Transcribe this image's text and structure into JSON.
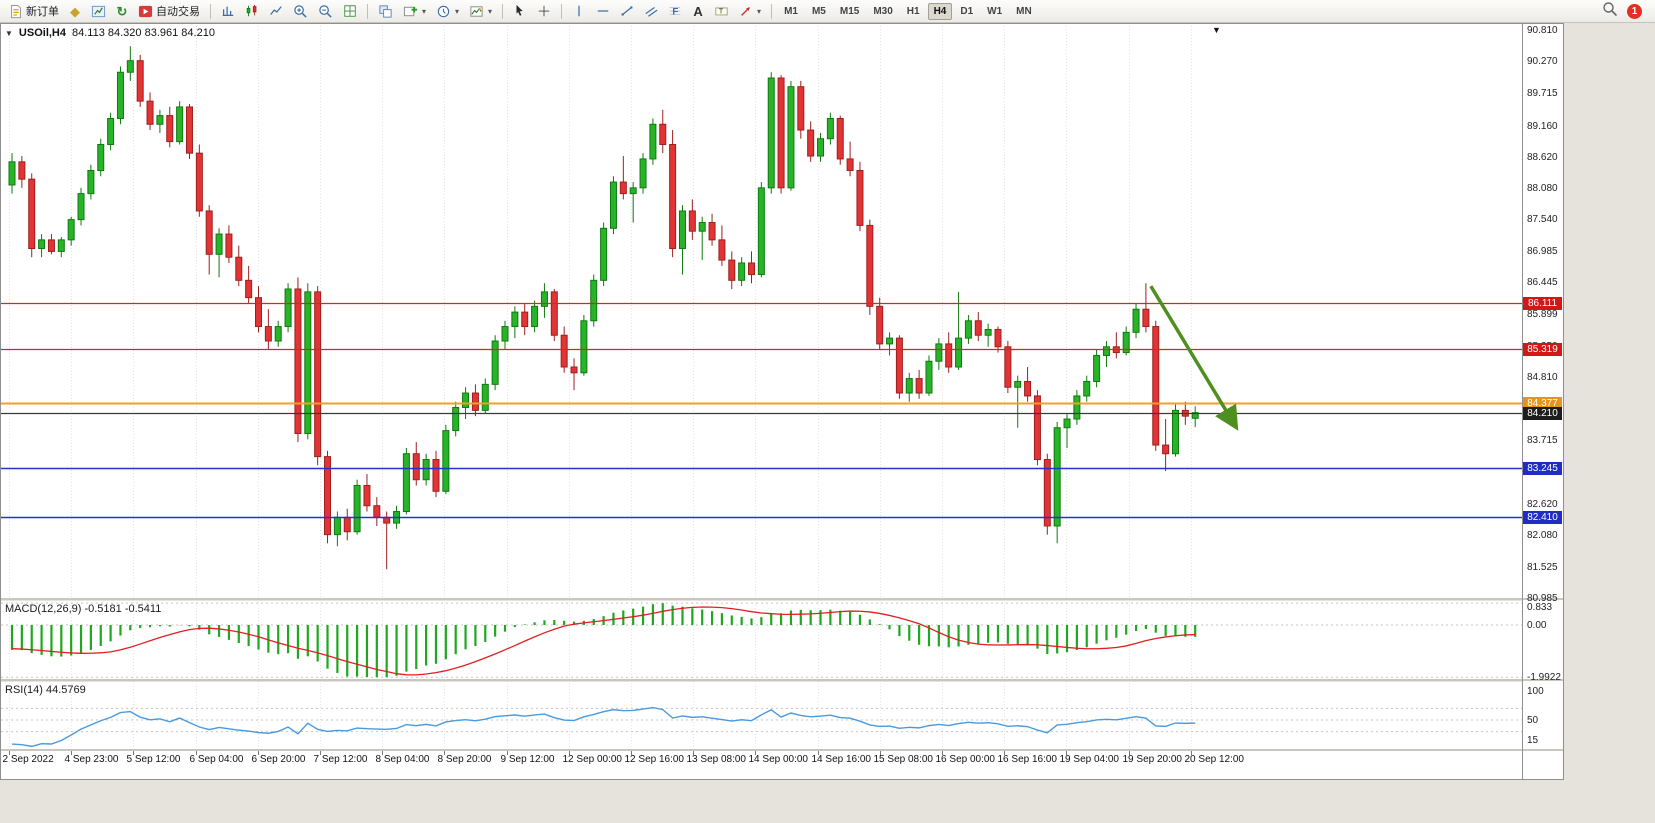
{
  "toolbar": {
    "new_order": "新订单",
    "autotrading": "自动交易",
    "timeframes": [
      "M1",
      "M5",
      "M15",
      "M30",
      "H1",
      "H4",
      "D1",
      "W1",
      "MN"
    ],
    "active_timeframe": "H4",
    "badge": "1"
  },
  "chart": {
    "title_symbol": "USOil,H4",
    "title_ohlc": "84.113 84.320 83.961 84.210"
  },
  "chart_data": {
    "type": "candlestick",
    "symbol": "USOil",
    "timeframe": "H4",
    "last_ohlc": {
      "open": 84.113,
      "high": 84.32,
      "low": 83.961,
      "close": 84.21
    },
    "price_axis": {
      "labels": [
        "90.810",
        "90.270",
        "89.715",
        "89.160",
        "88.620",
        "88.080",
        "87.540",
        "86.985",
        "86.445",
        "85.899",
        "85.350",
        "84.810",
        "84.270",
        "83.715",
        "83.175",
        "82.620",
        "82.080",
        "81.525",
        "80.985"
      ]
    },
    "time_axis": [
      "2 Sep 2022",
      "4 Sep 23:00",
      "5 Sep 12:00",
      "6 Sep 04:00",
      "6 Sep 20:00",
      "7 Sep 12:00",
      "8 Sep 04:00",
      "8 Sep 20:00",
      "9 Sep 12:00",
      "12 Sep 00:00",
      "12 Sep 16:00",
      "13 Sep 08:00",
      "14 Sep 00:00",
      "14 Sep 16:00",
      "15 Sep 08:00",
      "16 Sep 00:00",
      "16 Sep 16:00",
      "19 Sep 04:00",
      "19 Sep 20:00",
      "20 Sep 12:00"
    ],
    "horizontal_lines": [
      {
        "price": 86.111,
        "label": "86.111",
        "color": "#dd2222",
        "tag_color": "#d01818",
        "width": 1.2
      },
      {
        "price": 85.319,
        "label": "85.319",
        "color": "#dd2222",
        "tag_color": "#d01818",
        "width": 1.2
      },
      {
        "price": 84.377,
        "label": "84.377",
        "color": "#efa02c",
        "tag_color": "#e89418",
        "width": 2
      },
      {
        "price": 84.21,
        "label": "84.210",
        "color": "#3a3a3a",
        "tag_color": "#1d1d1d",
        "width": 1.2,
        "role": "last-price"
      },
      {
        "price": 83.245,
        "label": "83.245",
        "color": "#2433cf",
        "tag_color": "#1f2dc4",
        "width": 1.5
      },
      {
        "price": 82.41,
        "label": "82.410",
        "color": "#2433cf",
        "tag_color": "#1f2dc4",
        "width": 1.5
      }
    ],
    "arrow_annotation": {
      "from_index": 115.5,
      "from_price": 86.4,
      "to_index": 124,
      "to_price": 84.0,
      "color": "#4f8f1f"
    },
    "indicators": [
      {
        "name": "MACD",
        "params": [
          12,
          26,
          9
        ],
        "display": "MACD(12,26,9) -0.5181 -0.5411",
        "values": [
          -0.5181,
          -0.5411
        ],
        "scale_labels": [
          "0.833",
          "0.00",
          "-1.9922"
        ],
        "scale_values": [
          0.833,
          0,
          -1.9922
        ]
      },
      {
        "name": "RSI",
        "params": [
          14
        ],
        "display": "RSI(14) 44.5769",
        "value": 44.5769,
        "scale_labels": [
          "100",
          "50",
          "15"
        ],
        "scale_values": [
          100,
          50,
          15
        ],
        "levels": [
          70,
          50,
          30
        ]
      }
    ],
    "colors": {
      "bull": "#28b428",
      "bull_border": "#0f7a0f",
      "bear": "#e23434",
      "bear_border": "#9e1f1f",
      "macd_histogram": "#1ea81e",
      "macd_signal": "#e02020",
      "rsi_line": "#4a9ade",
      "grid": "#e4e4e4",
      "background": "#ffffff"
    },
    "candles": [
      [
        88.15,
        88.7,
        88.0,
        88.55
      ],
      [
        88.55,
        88.65,
        88.1,
        88.25
      ],
      [
        88.25,
        88.35,
        86.9,
        87.05
      ],
      [
        87.05,
        87.3,
        86.9,
        87.2
      ],
      [
        87.2,
        87.3,
        86.95,
        87.0
      ],
      [
        87.0,
        87.25,
        86.9,
        87.2
      ],
      [
        87.2,
        87.6,
        87.1,
        87.55
      ],
      [
        87.55,
        88.1,
        87.45,
        88.0
      ],
      [
        88.0,
        88.5,
        87.9,
        88.4
      ],
      [
        88.4,
        88.95,
        88.3,
        88.85
      ],
      [
        88.85,
        89.4,
        88.75,
        89.3
      ],
      [
        89.3,
        90.2,
        89.2,
        90.1
      ],
      [
        90.1,
        90.55,
        89.95,
        90.3
      ],
      [
        90.3,
        90.4,
        89.5,
        89.6
      ],
      [
        89.6,
        89.75,
        89.1,
        89.2
      ],
      [
        89.2,
        89.45,
        89.05,
        89.35
      ],
      [
        89.35,
        89.5,
        88.8,
        88.9
      ],
      [
        88.9,
        89.6,
        88.85,
        89.5
      ],
      [
        89.5,
        89.55,
        88.6,
        88.7
      ],
      [
        88.7,
        88.85,
        87.6,
        87.7
      ],
      [
        87.7,
        87.8,
        86.6,
        86.95
      ],
      [
        86.95,
        87.4,
        86.55,
        87.3
      ],
      [
        87.3,
        87.45,
        86.8,
        86.9
      ],
      [
        86.9,
        87.1,
        86.4,
        86.5
      ],
      [
        86.5,
        86.75,
        86.1,
        86.2
      ],
      [
        86.2,
        86.4,
        85.6,
        85.7
      ],
      [
        85.7,
        86.0,
        85.3,
        85.45
      ],
      [
        85.45,
        85.8,
        85.35,
        85.7
      ],
      [
        85.7,
        86.45,
        85.6,
        86.35
      ],
      [
        86.35,
        86.55,
        83.7,
        83.85
      ],
      [
        83.85,
        86.45,
        83.75,
        86.3
      ],
      [
        86.3,
        86.4,
        83.3,
        83.45
      ],
      [
        83.45,
        83.55,
        81.95,
        82.1
      ],
      [
        82.1,
        82.5,
        81.9,
        82.4
      ],
      [
        82.4,
        82.55,
        82.0,
        82.15
      ],
      [
        82.15,
        83.05,
        82.1,
        82.95
      ],
      [
        82.95,
        83.15,
        82.5,
        82.6
      ],
      [
        82.6,
        82.75,
        82.25,
        82.4
      ],
      [
        82.4,
        82.5,
        81.5,
        82.3
      ],
      [
        82.3,
        82.6,
        82.2,
        82.5
      ],
      [
        82.5,
        83.6,
        82.45,
        83.5
      ],
      [
        83.5,
        83.7,
        82.95,
        83.05
      ],
      [
        83.05,
        83.5,
        82.95,
        83.4
      ],
      [
        83.4,
        83.55,
        82.75,
        82.85
      ],
      [
        82.85,
        84.0,
        82.8,
        83.9
      ],
      [
        83.9,
        84.4,
        83.8,
        84.3
      ],
      [
        84.3,
        84.65,
        84.1,
        84.55
      ],
      [
        84.55,
        84.7,
        84.15,
        84.25
      ],
      [
        84.25,
        84.8,
        84.2,
        84.7
      ],
      [
        84.7,
        85.55,
        84.6,
        85.45
      ],
      [
        85.45,
        85.8,
        85.3,
        85.7
      ],
      [
        85.7,
        86.05,
        85.5,
        85.95
      ],
      [
        85.95,
        86.1,
        85.55,
        85.7
      ],
      [
        85.7,
        86.15,
        85.6,
        86.05
      ],
      [
        86.05,
        86.45,
        85.85,
        86.3
      ],
      [
        86.3,
        86.35,
        85.45,
        85.55
      ],
      [
        85.55,
        85.7,
        84.9,
        85.0
      ],
      [
        85.0,
        85.15,
        84.6,
        84.9
      ],
      [
        84.9,
        85.9,
        84.85,
        85.8
      ],
      [
        85.8,
        86.6,
        85.7,
        86.5
      ],
      [
        86.5,
        87.5,
        86.4,
        87.4
      ],
      [
        87.4,
        88.3,
        87.3,
        88.2
      ],
      [
        88.2,
        88.65,
        87.9,
        88.0
      ],
      [
        88.0,
        88.2,
        87.5,
        88.1
      ],
      [
        88.1,
        88.7,
        88.0,
        88.6
      ],
      [
        88.6,
        89.3,
        88.5,
        89.2
      ],
      [
        89.2,
        89.45,
        88.7,
        88.85
      ],
      [
        88.85,
        89.1,
        86.9,
        87.05
      ],
      [
        87.05,
        87.8,
        86.6,
        87.7
      ],
      [
        87.7,
        87.9,
        87.2,
        87.35
      ],
      [
        87.35,
        87.6,
        86.85,
        87.5
      ],
      [
        87.5,
        87.65,
        87.1,
        87.2
      ],
      [
        87.2,
        87.45,
        86.75,
        86.85
      ],
      [
        86.85,
        87.0,
        86.35,
        86.5
      ],
      [
        86.5,
        86.9,
        86.4,
        86.8
      ],
      [
        86.8,
        87.0,
        86.45,
        86.6
      ],
      [
        86.6,
        88.2,
        86.55,
        88.1
      ],
      [
        88.1,
        90.1,
        88.0,
        90.0
      ],
      [
        90.0,
        90.05,
        88.0,
        88.1
      ],
      [
        88.1,
        89.95,
        88.05,
        89.85
      ],
      [
        89.85,
        89.95,
        88.95,
        89.1
      ],
      [
        89.1,
        89.25,
        88.55,
        88.65
      ],
      [
        88.65,
        89.05,
        88.55,
        88.95
      ],
      [
        88.95,
        89.4,
        88.85,
        89.3
      ],
      [
        89.3,
        89.35,
        88.5,
        88.6
      ],
      [
        88.6,
        88.9,
        88.3,
        88.4
      ],
      [
        88.4,
        88.55,
        87.35,
        87.45
      ],
      [
        87.45,
        87.55,
        85.9,
        86.05
      ],
      [
        86.05,
        86.2,
        85.3,
        85.4
      ],
      [
        85.4,
        85.6,
        85.2,
        85.5
      ],
      [
        85.5,
        85.55,
        84.45,
        84.55
      ],
      [
        84.55,
        84.9,
        84.4,
        84.8
      ],
      [
        84.8,
        84.95,
        84.45,
        84.55
      ],
      [
        84.55,
        85.2,
        84.5,
        85.1
      ],
      [
        85.1,
        85.5,
        84.95,
        85.4
      ],
      [
        85.4,
        85.6,
        84.9,
        85.0
      ],
      [
        85.0,
        86.3,
        84.95,
        85.5
      ],
      [
        85.5,
        85.9,
        85.4,
        85.8
      ],
      [
        85.8,
        85.95,
        85.45,
        85.55
      ],
      [
        85.55,
        85.75,
        85.35,
        85.65
      ],
      [
        85.65,
        85.7,
        85.25,
        85.35
      ],
      [
        85.35,
        85.45,
        84.55,
        84.65
      ],
      [
        84.65,
        84.85,
        83.95,
        84.75
      ],
      [
        84.75,
        85.0,
        84.4,
        84.5
      ],
      [
        84.5,
        84.6,
        83.3,
        83.4
      ],
      [
        83.4,
        83.5,
        82.1,
        82.25
      ],
      [
        82.25,
        84.05,
        81.95,
        83.95
      ],
      [
        83.95,
        84.2,
        83.6,
        84.1
      ],
      [
        84.1,
        84.6,
        84.0,
        84.5
      ],
      [
        84.5,
        84.85,
        84.4,
        84.75
      ],
      [
        84.75,
        85.3,
        84.65,
        85.2
      ],
      [
        85.2,
        85.45,
        85.0,
        85.35
      ],
      [
        85.35,
        85.6,
        85.15,
        85.25
      ],
      [
        85.25,
        85.7,
        85.2,
        85.6
      ],
      [
        85.6,
        86.1,
        85.5,
        86.0
      ],
      [
        86.0,
        86.45,
        85.6,
        85.7
      ],
      [
        85.7,
        85.8,
        83.55,
        83.65
      ],
      [
        83.65,
        84.1,
        83.2,
        83.5
      ],
      [
        83.5,
        84.35,
        83.45,
        84.25
      ],
      [
        84.25,
        84.4,
        84.0,
        84.15
      ],
      [
        84.113,
        84.32,
        83.961,
        84.21
      ]
    ]
  }
}
